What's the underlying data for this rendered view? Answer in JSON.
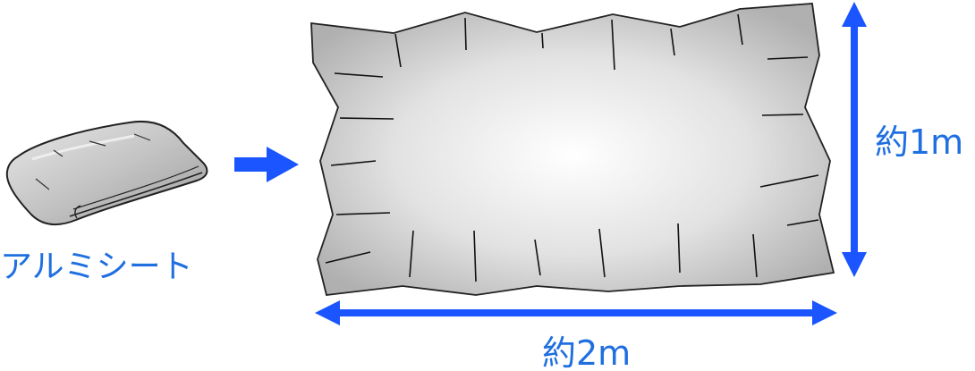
{
  "folded_sheet": {
    "label": "アルミシート"
  },
  "dimensions": {
    "height_label": "約1m",
    "width_label": "約2m"
  },
  "colors": {
    "label": "#1f6fe0",
    "arrow": "#1a55ff",
    "sheet_outline": "#222222",
    "sheet_center": "#ffffff",
    "sheet_edge": "#b4b4b4"
  }
}
